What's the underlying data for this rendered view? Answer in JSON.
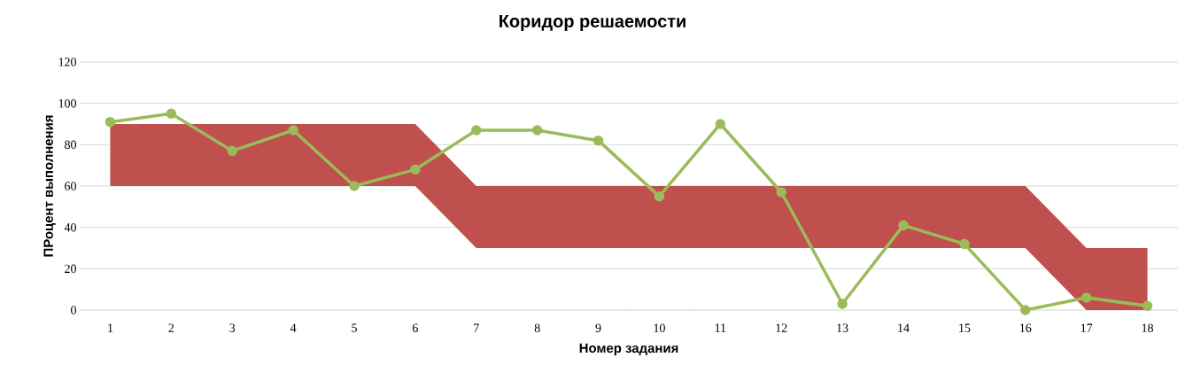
{
  "chart_data": {
    "type": "line",
    "title": "Коридор решаемости",
    "xlabel": "Номер задания",
    "ylabel": "ПРоцент выполнения",
    "categories": [
      "1",
      "2",
      "3",
      "4",
      "5",
      "6",
      "7",
      "8",
      "9",
      "10",
      "11",
      "12",
      "13",
      "14",
      "15",
      "16",
      "17",
      "18"
    ],
    "series": [
      {
        "color": "#c0504d",
        "values": [
          null,
          null,
          null,
          null,
          null,
          null,
          null,
          null,
          null,
          null,
          null,
          null,
          null,
          null,
          null,
          null,
          null,
          null
        ],
        "lower": [
          60,
          60,
          60,
          60,
          60,
          60,
          30,
          30,
          30,
          30,
          30,
          30,
          30,
          30,
          30,
          30,
          0,
          0
        ],
        "upper": [
          90,
          90,
          90,
          90,
          90,
          90,
          60,
          60,
          60,
          60,
          60,
          60,
          60,
          60,
          60,
          60,
          30,
          30
        ]
      },
      {
        "color": "#9bbb59",
        "marker": "circle",
        "values": [
          91,
          95,
          77,
          87,
          60,
          68,
          87,
          87,
          82,
          55,
          90,
          57,
          3,
          41,
          32,
          0,
          6,
          2
        ]
      }
    ],
    "ylim": [
      0,
      120
    ],
    "yticks": [
      0,
      20,
      40,
      60,
      80,
      100,
      120
    ],
    "grid": "y",
    "line_style": "solid"
  }
}
